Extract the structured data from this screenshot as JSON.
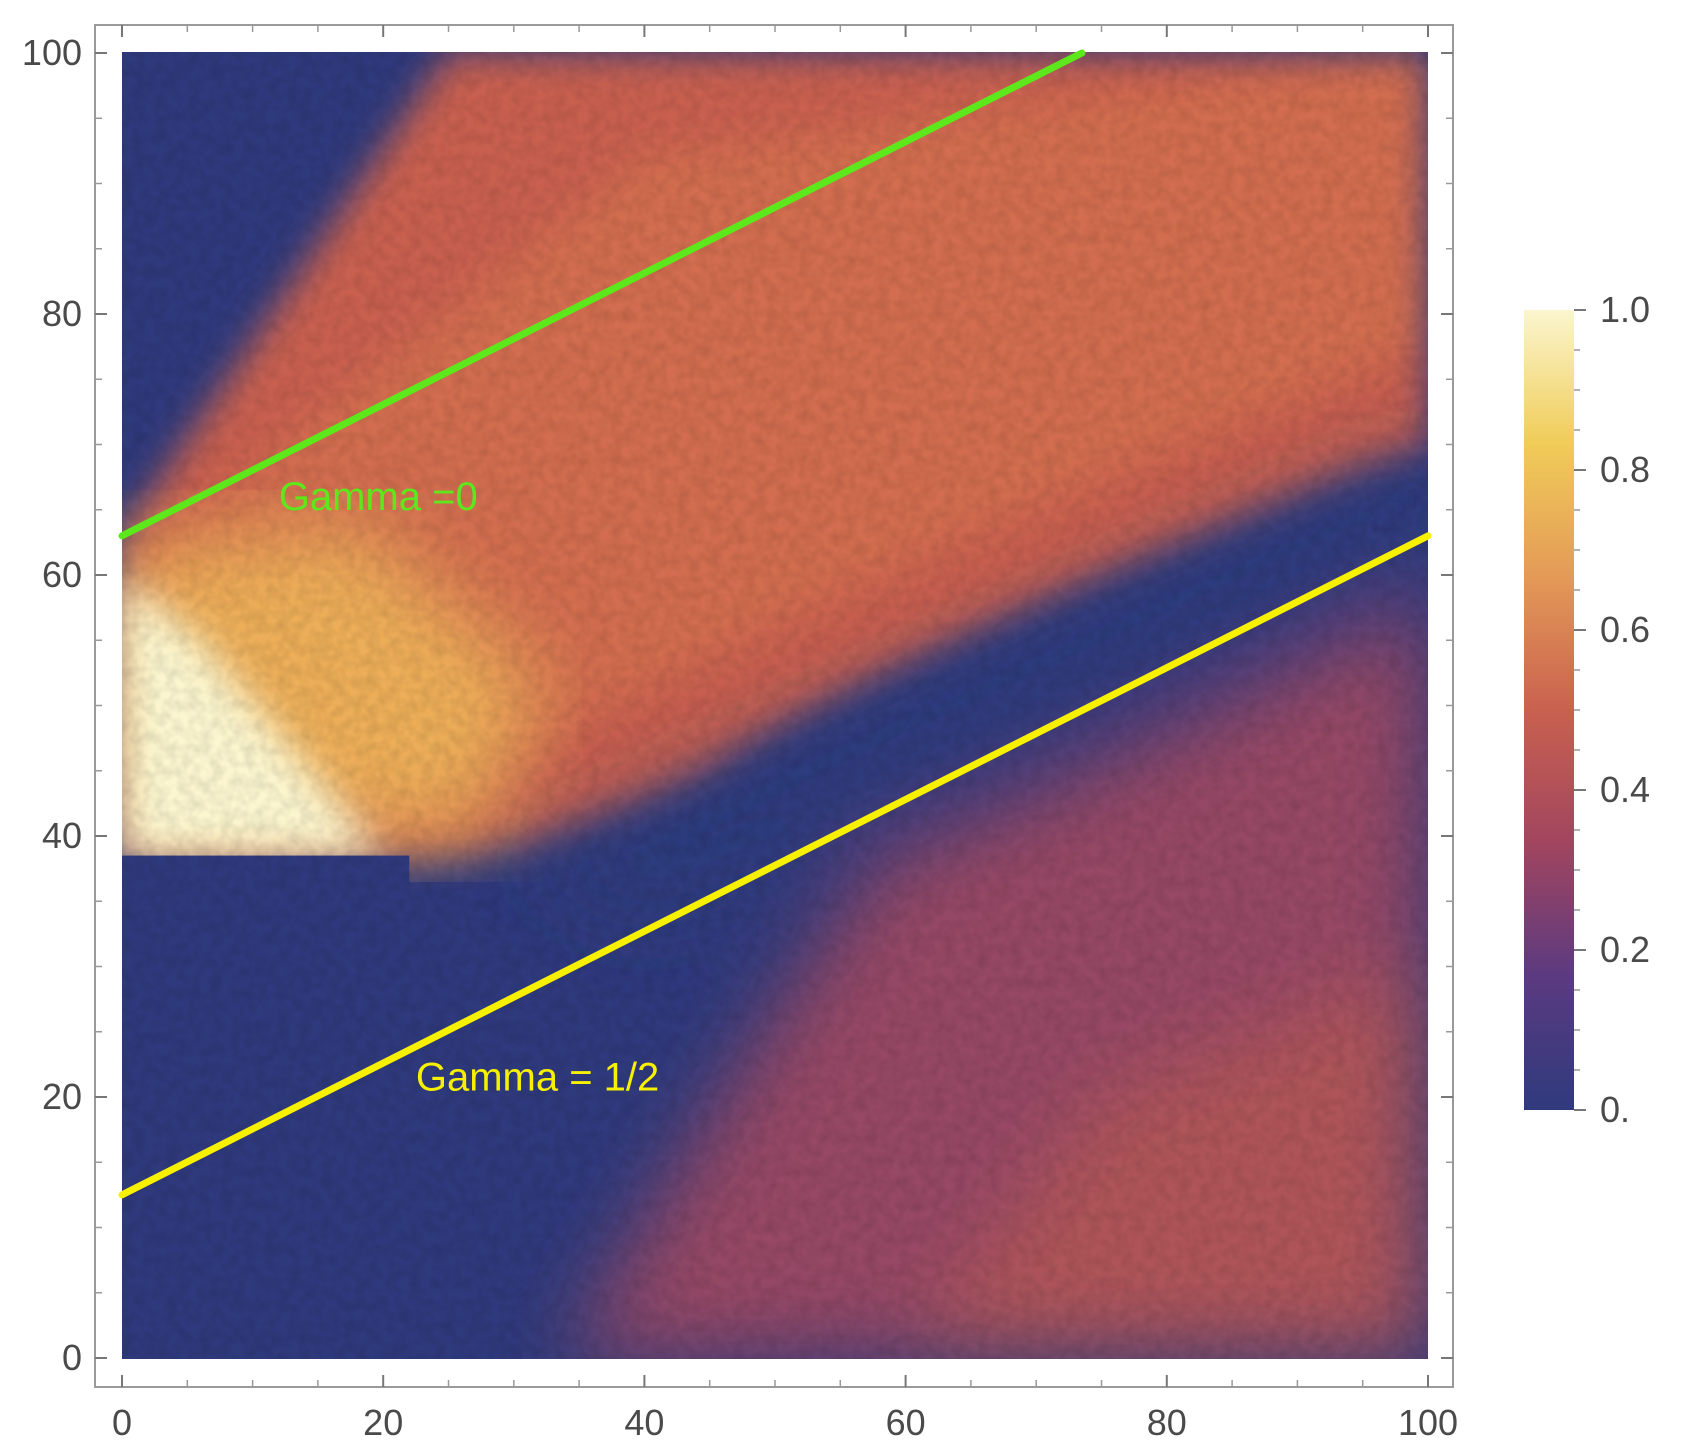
{
  "chart_data": {
    "type": "heatmap",
    "title": "",
    "xlabel": "",
    "ylabel": "",
    "xlim": [
      0,
      100
    ],
    "ylim": [
      0,
      100
    ],
    "xticks": [
      0,
      20,
      40,
      60,
      80,
      100
    ],
    "xtick_labels": [
      "0",
      "20",
      "40",
      "60",
      "80",
      "100"
    ],
    "yticks": [
      0,
      20,
      40,
      60,
      80,
      100
    ],
    "ytick_labels": [
      "0",
      "20",
      "40",
      "60",
      "80",
      "100"
    ],
    "grid": false,
    "colorbar": {
      "range": [
        0,
        1
      ],
      "ticks": [
        0,
        0.2,
        0.4,
        0.6,
        0.8,
        1.0
      ],
      "tick_labels": [
        "0.",
        "0.2",
        "0.4",
        "0.6",
        "0.8",
        "1.0"
      ],
      "colors": [
        "#2f3a7d",
        "#5b3a80",
        "#a1455f",
        "#c9614f",
        "#e49a57",
        "#f0cc58",
        "#fbf6cf"
      ]
    },
    "heatmap_regions": {
      "initial_block": {
        "x": [
          0,
          20
        ],
        "y": [
          38.5,
          63
        ],
        "value": 1.0
      },
      "upper_front": {
        "x_at_0": 63,
        "x_at_100": 100,
        "description_value": 0.45
      },
      "lower_front_start": {
        "x": 25,
        "y": 38.5
      },
      "empty_value": 0.0
    },
    "lines": [
      {
        "label": "Gamma =0",
        "color": "#5ce81a",
        "x": [
          0,
          73.5
        ],
        "y": [
          63,
          100
        ]
      },
      {
        "label": "Gamma = 1/2",
        "color": "#f7f000",
        "x": [
          0,
          100
        ],
        "y": [
          12.5,
          63
        ]
      }
    ],
    "annotations": [
      {
        "text": "Gamma =0",
        "x": 12,
        "y": 65,
        "color": "#5ce81a"
      },
      {
        "text": "Gamma = 1/2",
        "x": 22.5,
        "y": 20.5,
        "color": "#f7f000"
      }
    ]
  }
}
